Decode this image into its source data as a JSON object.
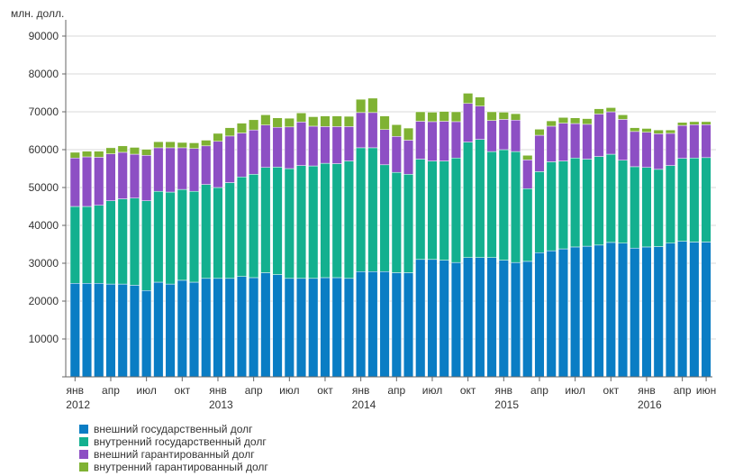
{
  "chart_data": {
    "type": "bar",
    "stacked": true,
    "ylabel": "млн. долл.",
    "ylim": [
      0,
      90000
    ],
    "yticks": [
      10000,
      20000,
      30000,
      40000,
      50000,
      60000,
      70000,
      80000,
      90000
    ],
    "grid": true,
    "legend_position": "bottom-left",
    "x_tick_labels": [
      {
        "index": 0,
        "label": "янв",
        "year": "2012"
      },
      {
        "index": 3,
        "label": "апр"
      },
      {
        "index": 6,
        "label": "июл"
      },
      {
        "index": 9,
        "label": "окт"
      },
      {
        "index": 12,
        "label": "янв",
        "year": "2013"
      },
      {
        "index": 15,
        "label": "апр"
      },
      {
        "index": 18,
        "label": "июл"
      },
      {
        "index": 21,
        "label": "окт"
      },
      {
        "index": 24,
        "label": "янв",
        "year": "2014"
      },
      {
        "index": 27,
        "label": "апр"
      },
      {
        "index": 30,
        "label": "июл"
      },
      {
        "index": 33,
        "label": "окт"
      },
      {
        "index": 36,
        "label": "янв",
        "year": "2015"
      },
      {
        "index": 39,
        "label": "апр"
      },
      {
        "index": 42,
        "label": "июл"
      },
      {
        "index": 45,
        "label": "окт"
      },
      {
        "index": 48,
        "label": "янв",
        "year": "2016"
      },
      {
        "index": 51,
        "label": "апр"
      },
      {
        "index": 53,
        "label": "июн"
      }
    ],
    "categories": [
      "2012-01",
      "2012-02",
      "2012-03",
      "2012-04",
      "2012-05",
      "2012-06",
      "2012-07",
      "2012-08",
      "2012-09",
      "2012-10",
      "2012-11",
      "2012-12",
      "2013-01",
      "2013-02",
      "2013-03",
      "2013-04",
      "2013-05",
      "2013-06",
      "2013-07",
      "2013-08",
      "2013-09",
      "2013-10",
      "2013-11",
      "2013-12",
      "2014-01",
      "2014-02",
      "2014-03",
      "2014-04",
      "2014-05",
      "2014-06",
      "2014-07",
      "2014-08",
      "2014-09",
      "2014-10",
      "2014-11",
      "2014-12",
      "2015-01",
      "2015-02",
      "2015-03",
      "2015-04",
      "2015-05",
      "2015-06",
      "2015-07",
      "2015-08",
      "2015-09",
      "2015-10",
      "2015-11",
      "2015-12",
      "2016-01",
      "2016-02",
      "2016-03",
      "2016-04",
      "2016-05",
      "2016-06"
    ],
    "series": [
      {
        "name": "внешний государственный долг",
        "color": "#0a7dc4",
        "values": [
          24700,
          24700,
          24700,
          24500,
          24500,
          24200,
          22800,
          25000,
          24500,
          25500,
          25000,
          26000,
          26000,
          26000,
          26500,
          26200,
          27500,
          27000,
          26000,
          26000,
          26000,
          26200,
          26200,
          26000,
          27800,
          27800,
          27800,
          27500,
          27500,
          31000,
          31000,
          30800,
          30200,
          31500,
          31500,
          31500,
          30800,
          30200,
          30500,
          32800,
          33300,
          33800,
          34300,
          34500,
          34800,
          35500,
          35300,
          34000,
          34300,
          34400,
          35300,
          35800,
          35600,
          35600
        ]
      },
      {
        "name": "внутренний государственный долг",
        "color": "#13b08f",
        "values": [
          20300,
          20300,
          20600,
          22000,
          22500,
          23000,
          23700,
          24000,
          24300,
          24000,
          24000,
          24800,
          24000,
          25300,
          26300,
          27300,
          27800,
          28400,
          29000,
          29800,
          29700,
          30200,
          30100,
          31000,
          32700,
          32700,
          28200,
          26500,
          26000,
          26500,
          26000,
          26200,
          27600,
          30500,
          31200,
          28000,
          29200,
          29300,
          19200,
          21400,
          23500,
          23200,
          23500,
          23000,
          23400,
          23300,
          21900,
          21500,
          21000,
          20400,
          20500,
          21900,
          22200,
          22300
        ]
      },
      {
        "name": "внешний гарантированный долг",
        "color": "#8d4fc4",
        "values": [
          12800,
          13100,
          12700,
          12400,
          12300,
          11600,
          12000,
          11500,
          11700,
          11000,
          11300,
          10200,
          12200,
          12300,
          11600,
          11700,
          11200,
          10500,
          11000,
          11500,
          10500,
          9700,
          9800,
          9100,
          9300,
          9300,
          9300,
          9500,
          9000,
          10000,
          10400,
          10500,
          9600,
          10200,
          8800,
          8200,
          8000,
          8300,
          7600,
          9600,
          9400,
          10000,
          9100,
          9200,
          11200,
          11200,
          10800,
          9300,
          9300,
          9400,
          8500,
          8700,
          8800,
          8700
        ]
      },
      {
        "name": "внутренний гарантированный долг",
        "color": "#7fb233",
        "values": [
          1500,
          1500,
          1600,
          1600,
          1700,
          1800,
          1600,
          1600,
          1600,
          1400,
          1500,
          1500,
          2100,
          2200,
          2600,
          2700,
          2700,
          2500,
          2300,
          2400,
          2500,
          2800,
          2800,
          2700,
          3500,
          3800,
          3600,
          3100,
          3200,
          2500,
          2500,
          2600,
          2600,
          2700,
          2400,
          2300,
          1900,
          1700,
          1200,
          1600,
          1400,
          1500,
          1500,
          1500,
          1400,
          1100,
          1200,
          1000,
          1000,
          1000,
          900,
          800,
          800,
          800
        ]
      }
    ]
  }
}
